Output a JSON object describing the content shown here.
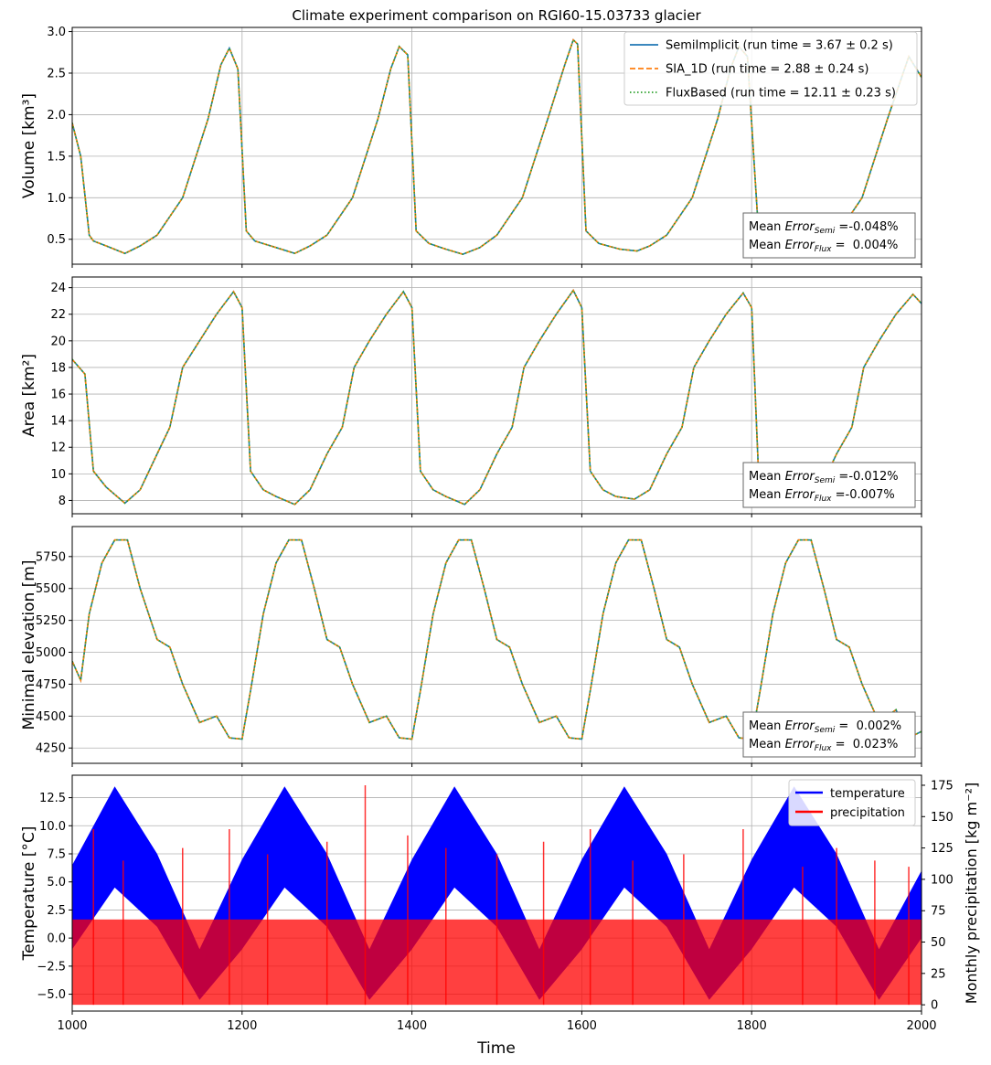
{
  "figure": {
    "title": "Climate experiment comparison on RGI60-15.03733 glacier",
    "xlabel": "Time"
  },
  "chart_data": [
    {
      "type": "line",
      "ylabel": "Volume [km³]",
      "xlim": [
        1000,
        2000
      ],
      "ylim": [
        0.2,
        3.05
      ],
      "yticks": [
        "0.5",
        "1.0",
        "1.5",
        "2.0",
        "2.5",
        "3.0"
      ],
      "ytick_values": [
        0.5,
        1.0,
        1.5,
        2.0,
        2.5,
        3.0
      ],
      "xticks": [
        "1000",
        "1200",
        "1400",
        "1600",
        "1800",
        "2000"
      ],
      "xtick_values": [
        1000,
        1200,
        1400,
        1600,
        1800,
        2000
      ],
      "grid": true,
      "legend_position": "upper-right",
      "x": [
        1000,
        1010,
        1020,
        1025,
        1040,
        1062,
        1080,
        1100,
        1130,
        1160,
        1175,
        1185,
        1195,
        1205,
        1215,
        1240,
        1262,
        1280,
        1300,
        1330,
        1360,
        1375,
        1385,
        1395,
        1405,
        1420,
        1440,
        1460,
        1480,
        1500,
        1530,
        1560,
        1580,
        1590,
        1595,
        1605,
        1620,
        1645,
        1665,
        1680,
        1700,
        1730,
        1760,
        1775,
        1785,
        1795,
        1808,
        1825,
        1850,
        1865,
        1880,
        1900,
        1930,
        1960,
        1985,
        2000
      ],
      "series": [
        {
          "name": "SemiImplicit (run time = 3.67 ± 0.2 s)",
          "color": "#1f77b4",
          "style": "solid",
          "values": [
            1.9,
            1.5,
            0.55,
            0.48,
            0.42,
            0.33,
            0.42,
            0.55,
            1.0,
            1.95,
            2.6,
            2.8,
            2.55,
            0.6,
            0.48,
            0.4,
            0.33,
            0.42,
            0.55,
            1.0,
            1.95,
            2.55,
            2.82,
            2.72,
            0.6,
            0.45,
            0.38,
            0.32,
            0.4,
            0.55,
            1.0,
            1.95,
            2.6,
            2.9,
            2.85,
            0.6,
            0.45,
            0.38,
            0.36,
            0.42,
            0.55,
            1.0,
            1.95,
            2.55,
            2.82,
            2.7,
            0.6,
            0.42,
            0.36,
            0.36,
            0.42,
            0.55,
            1.0,
            1.95,
            2.7,
            2.45
          ]
        },
        {
          "name": "SIA_1D (run time = 2.88 ± 0.24 s)",
          "color": "#ff7f0e",
          "style": "dashed",
          "values": [
            1.9,
            1.5,
            0.55,
            0.48,
            0.42,
            0.33,
            0.42,
            0.55,
            1.0,
            1.95,
            2.6,
            2.8,
            2.55,
            0.6,
            0.48,
            0.4,
            0.33,
            0.42,
            0.55,
            1.0,
            1.95,
            2.55,
            2.82,
            2.72,
            0.6,
            0.45,
            0.38,
            0.32,
            0.4,
            0.55,
            1.0,
            1.95,
            2.6,
            2.9,
            2.85,
            0.6,
            0.45,
            0.38,
            0.36,
            0.42,
            0.55,
            1.0,
            1.95,
            2.55,
            2.82,
            2.7,
            0.6,
            0.42,
            0.36,
            0.36,
            0.42,
            0.55,
            1.0,
            1.95,
            2.7,
            2.45
          ]
        },
        {
          "name": "FluxBased (run time = 12.11 ± 0.23 s)",
          "color": "#2ca02c",
          "style": "dotted",
          "values": [
            1.9,
            1.5,
            0.55,
            0.48,
            0.42,
            0.33,
            0.42,
            0.55,
            1.0,
            1.95,
            2.6,
            2.8,
            2.55,
            0.6,
            0.48,
            0.4,
            0.33,
            0.42,
            0.55,
            1.0,
            1.95,
            2.55,
            2.82,
            2.72,
            0.6,
            0.45,
            0.38,
            0.32,
            0.4,
            0.55,
            1.0,
            1.95,
            2.6,
            2.9,
            2.85,
            0.6,
            0.45,
            0.38,
            0.36,
            0.42,
            0.55,
            1.0,
            1.95,
            2.55,
            2.82,
            2.7,
            0.6,
            0.42,
            0.36,
            0.36,
            0.42,
            0.55,
            1.0,
            1.95,
            2.7,
            2.45
          ]
        }
      ],
      "errors": {
        "semi": "-0.048%",
        "flux": "  0.004%"
      }
    },
    {
      "type": "line",
      "ylabel": "Area [km²]",
      "xlim": [
        1000,
        2000
      ],
      "ylim": [
        7.0,
        24.8
      ],
      "yticks": [
        "8",
        "10",
        "12",
        "14",
        "16",
        "18",
        "20",
        "22",
        "24"
      ],
      "ytick_values": [
        8,
        10,
        12,
        14,
        16,
        18,
        20,
        22,
        24
      ],
      "grid": true,
      "x": [
        1000,
        1015,
        1025,
        1040,
        1062,
        1080,
        1100,
        1115,
        1130,
        1150,
        1170,
        1190,
        1200,
        1210,
        1225,
        1240,
        1262,
        1280,
        1300,
        1318,
        1332,
        1350,
        1370,
        1390,
        1400,
        1410,
        1425,
        1440,
        1462,
        1480,
        1500,
        1518,
        1532,
        1550,
        1570,
        1590,
        1600,
        1610,
        1625,
        1640,
        1662,
        1680,
        1700,
        1718,
        1732,
        1750,
        1770,
        1790,
        1800,
        1808,
        1825,
        1840,
        1862,
        1880,
        1900,
        1918,
        1932,
        1950,
        1970,
        1990,
        2000
      ],
      "series": [
        {
          "name": "SemiImplicit",
          "color": "#1f77b4",
          "style": "solid",
          "values": [
            18.6,
            17.5,
            10.2,
            9.0,
            7.8,
            8.8,
            11.5,
            13.5,
            18.0,
            20.0,
            22.0,
            23.7,
            22.5,
            10.2,
            8.8,
            8.3,
            7.7,
            8.8,
            11.5,
            13.5,
            18.0,
            20.0,
            22.0,
            23.7,
            22.5,
            10.2,
            8.8,
            8.3,
            7.7,
            8.8,
            11.5,
            13.5,
            18.0,
            20.0,
            22.0,
            23.8,
            22.5,
            10.2,
            8.8,
            8.3,
            8.1,
            8.8,
            11.5,
            13.5,
            18.0,
            20.0,
            22.0,
            23.6,
            22.5,
            10.2,
            8.8,
            8.3,
            8.0,
            8.8,
            11.5,
            13.5,
            18.0,
            20.0,
            22.0,
            23.5,
            22.8
          ]
        },
        {
          "name": "SIA_1D",
          "color": "#ff7f0e",
          "style": "dashed",
          "values": [
            18.6,
            17.5,
            10.2,
            9.0,
            7.8,
            8.8,
            11.5,
            13.5,
            18.0,
            20.0,
            22.0,
            23.7,
            22.5,
            10.2,
            8.8,
            8.3,
            7.7,
            8.8,
            11.5,
            13.5,
            18.0,
            20.0,
            22.0,
            23.7,
            22.5,
            10.2,
            8.8,
            8.3,
            7.7,
            8.8,
            11.5,
            13.5,
            18.0,
            20.0,
            22.0,
            23.8,
            22.5,
            10.2,
            8.8,
            8.3,
            8.1,
            8.8,
            11.5,
            13.5,
            18.0,
            20.0,
            22.0,
            23.6,
            22.5,
            10.2,
            8.8,
            8.3,
            8.0,
            8.8,
            11.5,
            13.5,
            18.0,
            20.0,
            22.0,
            23.5,
            22.8
          ]
        },
        {
          "name": "FluxBased",
          "color": "#2ca02c",
          "style": "dotted",
          "values": [
            18.6,
            17.5,
            10.2,
            9.0,
            7.8,
            8.8,
            11.5,
            13.5,
            18.0,
            20.0,
            22.0,
            23.7,
            22.5,
            10.2,
            8.8,
            8.3,
            7.7,
            8.8,
            11.5,
            13.5,
            18.0,
            20.0,
            22.0,
            23.7,
            22.5,
            10.2,
            8.8,
            8.3,
            7.7,
            8.8,
            11.5,
            13.5,
            18.0,
            20.0,
            22.0,
            23.8,
            22.5,
            10.2,
            8.8,
            8.3,
            8.1,
            8.8,
            11.5,
            13.5,
            18.0,
            20.0,
            22.0,
            23.6,
            22.5,
            10.2,
            8.8,
            8.3,
            8.0,
            8.8,
            11.5,
            13.5,
            18.0,
            20.0,
            22.0,
            23.5,
            22.8
          ]
        }
      ],
      "errors": {
        "semi": "-0.012%",
        "flux": "-0.007%"
      }
    },
    {
      "type": "line",
      "ylabel": "Minimal elevation [m]",
      "xlim": [
        1000,
        2000
      ],
      "ylim": [
        4130,
        5985
      ],
      "yticks": [
        "4250",
        "4500",
        "4750",
        "5000",
        "5250",
        "5500",
        "5750"
      ],
      "ytick_values": [
        4250,
        4500,
        4750,
        5000,
        5250,
        5500,
        5750
      ],
      "grid": true,
      "x": [
        1000,
        1010,
        1020,
        1035,
        1050,
        1065,
        1080,
        1100,
        1115,
        1130,
        1150,
        1170,
        1185,
        1200,
        1210,
        1225,
        1240,
        1255,
        1270,
        1285,
        1300,
        1315,
        1330,
        1350,
        1370,
        1385,
        1400,
        1410,
        1425,
        1440,
        1455,
        1470,
        1485,
        1500,
        1515,
        1530,
        1550,
        1570,
        1585,
        1600,
        1610,
        1625,
        1640,
        1655,
        1670,
        1685,
        1700,
        1715,
        1730,
        1750,
        1770,
        1785,
        1800,
        1810,
        1825,
        1840,
        1855,
        1870,
        1885,
        1900,
        1915,
        1930,
        1950,
        1970,
        1985,
        2000
      ],
      "series": [
        {
          "name": "SemiImplicit",
          "color": "#1f77b4",
          "style": "solid",
          "values": [
            4930,
            4780,
            5300,
            5700,
            5880,
            5880,
            5500,
            5100,
            5040,
            4750,
            4450,
            4500,
            4330,
            4320,
            4700,
            5300,
            5700,
            5880,
            5880,
            5500,
            5100,
            5040,
            4750,
            4450,
            4500,
            4330,
            4320,
            4700,
            5300,
            5700,
            5880,
            5880,
            5500,
            5100,
            5040,
            4750,
            4450,
            4500,
            4330,
            4320,
            4700,
            5300,
            5700,
            5880,
            5880,
            5500,
            5100,
            5040,
            4750,
            4450,
            4500,
            4330,
            4320,
            4700,
            5300,
            5700,
            5880,
            5880,
            5500,
            5100,
            5040,
            4750,
            4450,
            4550,
            4330,
            4380
          ]
        },
        {
          "name": "SIA_1D",
          "color": "#ff7f0e",
          "style": "dashed",
          "values": [
            4930,
            4780,
            5300,
            5700,
            5880,
            5880,
            5500,
            5100,
            5040,
            4750,
            4450,
            4500,
            4330,
            4320,
            4700,
            5300,
            5700,
            5880,
            5880,
            5500,
            5100,
            5040,
            4750,
            4450,
            4500,
            4330,
            4320,
            4700,
            5300,
            5700,
            5880,
            5880,
            5500,
            5100,
            5040,
            4750,
            4450,
            4500,
            4330,
            4320,
            4700,
            5300,
            5700,
            5880,
            5880,
            5500,
            5100,
            5040,
            4750,
            4450,
            4500,
            4330,
            4320,
            4700,
            5300,
            5700,
            5880,
            5880,
            5500,
            5100,
            5040,
            4750,
            4450,
            4550,
            4330,
            4380
          ]
        },
        {
          "name": "FluxBased",
          "color": "#2ca02c",
          "style": "dotted",
          "values": [
            4930,
            4780,
            5300,
            5700,
            5880,
            5880,
            5500,
            5100,
            5040,
            4750,
            4450,
            4500,
            4330,
            4320,
            4700,
            5300,
            5700,
            5880,
            5880,
            5500,
            5100,
            5040,
            4750,
            4450,
            4500,
            4330,
            4320,
            4700,
            5300,
            5700,
            5880,
            5880,
            5500,
            5100,
            5040,
            4750,
            4450,
            4500,
            4330,
            4320,
            4700,
            5300,
            5700,
            5880,
            5880,
            5500,
            5100,
            5040,
            4750,
            4450,
            4500,
            4330,
            4320,
            4700,
            5300,
            5700,
            5880,
            5880,
            5500,
            5100,
            5040,
            4750,
            4450,
            4550,
            4330,
            4380
          ]
        }
      ],
      "errors": {
        "semi": "  0.002%",
        "flux": "  0.023%"
      }
    },
    {
      "type": "line",
      "ylabel": "Temperature [°C]",
      "ylabel_right": "Monthly precipitation [kg m⁻²]",
      "xlim": [
        1000,
        2000
      ],
      "ylim": [
        -6.5,
        14.5
      ],
      "ylim_right": [
        -5,
        183
      ],
      "yticks": [
        "−5.0",
        "−2.5",
        "0.0",
        "2.5",
        "5.0",
        "7.5",
        "10.0",
        "12.5"
      ],
      "ytick_values": [
        -5.0,
        -2.5,
        0.0,
        2.5,
        5.0,
        7.5,
        10.0,
        12.5
      ],
      "yticks_right": [
        "0",
        "25",
        "50",
        "75",
        "100",
        "125",
        "150",
        "175"
      ],
      "ytick_values_right": [
        0,
        25,
        50,
        75,
        100,
        125,
        150,
        175
      ],
      "grid": true,
      "legend_position": "upper-right",
      "series": [
        {
          "name": "temperature",
          "color": "#0000ff",
          "x": [
            1000,
            1050,
            1100,
            1150,
            1200,
            1250,
            1300,
            1350,
            1400,
            1450,
            1500,
            1550,
            1600,
            1650,
            1700,
            1750,
            1800,
            1850,
            1900,
            1950,
            2000
          ],
          "upper": [
            6.5,
            13.5,
            7.5,
            -1.0,
            7.0,
            13.5,
            7.5,
            -1.0,
            7.0,
            13.5,
            7.5,
            -1.0,
            7.0,
            13.5,
            7.5,
            -1.0,
            7.0,
            13.5,
            7.5,
            -1.0,
            6.0
          ],
          "lower": [
            -1.0,
            4.5,
            1.0,
            -5.5,
            -1.0,
            4.5,
            1.0,
            -5.5,
            -1.0,
            4.5,
            1.0,
            -5.5,
            -1.0,
            4.5,
            1.0,
            -5.5,
            -1.0,
            4.5,
            1.0,
            -5.5,
            0.0
          ]
        },
        {
          "name": "precipitation",
          "color": "#ff0000",
          "baseline": 0,
          "typical_max": 68,
          "spikes": [
            [
              1025,
              140
            ],
            [
              1060,
              115
            ],
            [
              1130,
              125
            ],
            [
              1185,
              140
            ],
            [
              1230,
              120
            ],
            [
              1300,
              130
            ],
            [
              1345,
              175
            ],
            [
              1395,
              135
            ],
            [
              1440,
              125
            ],
            [
              1500,
              120
            ],
            [
              1555,
              130
            ],
            [
              1610,
              140
            ],
            [
              1660,
              115
            ],
            [
              1720,
              120
            ],
            [
              1790,
              140
            ],
            [
              1860,
              110
            ],
            [
              1900,
              125
            ],
            [
              1945,
              115
            ],
            [
              1985,
              110
            ]
          ]
        }
      ]
    }
  ],
  "legend_bottom": {
    "temperature": "temperature",
    "precipitation": "precipitation"
  },
  "error_labels": {
    "prefix": "Mean ",
    "word": "Error",
    "semi_sub": "Semi",
    "flux_sub": "Flux",
    "eq": " ="
  }
}
